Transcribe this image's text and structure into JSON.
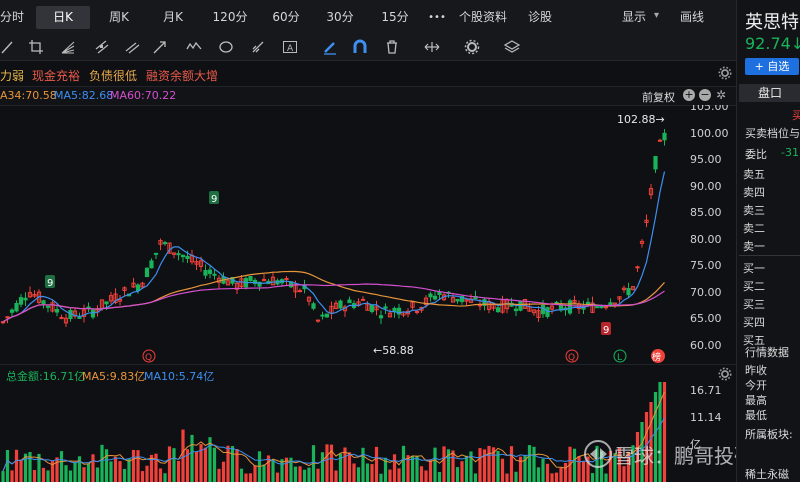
{
  "toolbar": {
    "tabs": [
      "分时",
      "日K",
      "周K",
      "月K",
      "120分",
      "60分",
      "30分",
      "15分"
    ],
    "more_label": "•••",
    "profile_label": "个股资料",
    "diagnose_label": "诊股",
    "display_label": "显示",
    "draw_label": "画线"
  },
  "tags": [
    {
      "text": "力弱",
      "color": "#e8b84a"
    },
    {
      "text": "现金充裕",
      "color": "#e85a4a"
    },
    {
      "text": "负债很低",
      "color": "#e8a84a"
    },
    {
      "text": "融资余额大增",
      "color": "#e85a4a"
    }
  ],
  "ma_legend": {
    "ma34": "A34:70.58",
    "ma5": "MA5:82.68",
    "ma60": "MA60:70.22",
    "adjust_label": "前复权"
  },
  "price_axis": [
    "105.00",
    "100.00",
    "95.00",
    "90.00",
    "85.00",
    "80.00",
    "75.00",
    "70.00",
    "65.00",
    "60.00"
  ],
  "annotations": {
    "high": "102.88→",
    "low": "←58.88",
    "q1": "Q",
    "q2": "Q",
    "l": "L",
    "bang": "榜",
    "nines": [
      "9",
      "9",
      "9"
    ]
  },
  "volume_legend": {
    "total": "总金额:16.71亿",
    "ma5": "MA5:9.83亿",
    "ma10": "MA10:5.74亿"
  },
  "volume_axis": [
    "16.71",
    "11.14",
    "亿"
  ],
  "watermark": "雪球：鹏哥投研",
  "side": {
    "stock_name": "英思特",
    "price": "92.74↓",
    "add_watch": "+ 自选",
    "tab": "盘口",
    "buy_sell_mark": "买",
    "order_levels_title": "买卖档位与",
    "ratio_label": "委比",
    "ratio_value": "-31.",
    "asks": [
      "卖五",
      "卖四",
      "卖三",
      "卖二",
      "卖一"
    ],
    "bids": [
      "买一",
      "买二",
      "买三",
      "买四",
      "买五"
    ],
    "market_title": "行情数据",
    "market_rows": [
      "昨收",
      "今开",
      "最高",
      "最低"
    ],
    "sector_label": "所属板块:",
    "sector_value": "稀土永磁"
  },
  "colors": {
    "up": "#f0413a",
    "down": "#19b35a",
    "ma5": "#3d8ff0",
    "ma34": "#e8953a",
    "ma60": "#d44fd0"
  }
}
